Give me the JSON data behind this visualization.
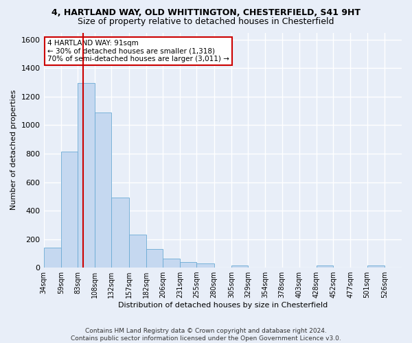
{
  "title_line1": "4, HARTLAND WAY, OLD WHITTINGTON, CHESTERFIELD, S41 9HT",
  "title_line2": "Size of property relative to detached houses in Chesterfield",
  "xlabel": "Distribution of detached houses by size in Chesterfield",
  "ylabel": "Number of detached properties",
  "bar_lefts": [
    34,
    59,
    83,
    108,
    132,
    157,
    182,
    206,
    231,
    255,
    280,
    305,
    329,
    354,
    378,
    403,
    428,
    452,
    477,
    501
  ],
  "bar_widths": [
    25,
    24,
    25,
    24,
    25,
    25,
    24,
    25,
    24,
    25,
    25,
    24,
    25,
    24,
    25,
    25,
    24,
    25,
    24,
    25
  ],
  "bar_heights": [
    140,
    815,
    1295,
    1090,
    490,
    232,
    130,
    65,
    38,
    28,
    0,
    17,
    0,
    0,
    0,
    0,
    17,
    0,
    0,
    17
  ],
  "bar_color": "#c5d8f0",
  "bar_edgecolor": "#6aaad4",
  "property_line_x": 91,
  "annotation_line1": "4 HARTLAND WAY: 91sqm",
  "annotation_line2": "← 30% of detached houses are smaller (1,318)",
  "annotation_line3": "70% of semi-detached houses are larger (3,011) →",
  "annotation_box_color": "#ffffff",
  "annotation_box_edgecolor": "#cc0000",
  "vline_color": "#cc0000",
  "xlim": [
    34,
    551
  ],
  "ylim": [
    0,
    1650
  ],
  "yticks": [
    0,
    200,
    400,
    600,
    800,
    1000,
    1200,
    1400,
    1600
  ],
  "xtick_labels": [
    "34sqm",
    "59sqm",
    "83sqm",
    "108sqm",
    "132sqm",
    "157sqm",
    "182sqm",
    "206sqm",
    "231sqm",
    "255sqm",
    "280sqm",
    "305sqm",
    "329sqm",
    "354sqm",
    "378sqm",
    "403sqm",
    "428sqm",
    "452sqm",
    "477sqm",
    "501sqm",
    "526sqm"
  ],
  "xtick_positions": [
    34,
    59,
    83,
    108,
    132,
    157,
    182,
    206,
    231,
    255,
    280,
    305,
    329,
    354,
    378,
    403,
    428,
    452,
    477,
    501,
    526
  ],
  "footer_line1": "Contains HM Land Registry data © Crown copyright and database right 2024.",
  "footer_line2": "Contains public sector information licensed under the Open Government Licence v3.0.",
  "bg_color": "#e8eef8",
  "plot_bg_color": "#e8eef8",
  "grid_color": "#ffffff",
  "title_fontsize": 9,
  "subtitle_fontsize": 9,
  "axis_label_fontsize": 8,
  "tick_fontsize": 7,
  "annotation_fontsize": 7.5,
  "footer_fontsize": 6.5
}
